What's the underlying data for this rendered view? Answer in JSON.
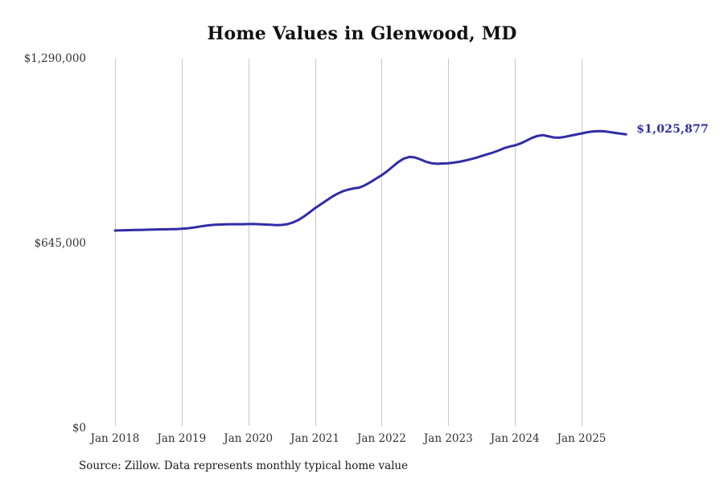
{
  "title": "Home Values in Glenwood, MD",
  "source_note": "Source: Zillow. Data represents monthly typical home value",
  "final_value_label": "$1,025,877",
  "colors": {
    "line": "#312CA6",
    "final_label": "#312CA6",
    "grid": "#c9c9c9",
    "axis_text": "#333333",
    "title_text": "#111111"
  },
  "chart_data": {
    "type": "line",
    "title": "Home Values in Glenwood, MD",
    "xlabel": "",
    "ylabel": "",
    "grid": "vertical-only",
    "legend": "none",
    "ylim": [
      0,
      1290000
    ],
    "y_ticks": [
      {
        "label": "$0",
        "value": 0
      },
      {
        "label": "$645,000",
        "value": 645000
      },
      {
        "label": "$1,290,000",
        "value": 1290000
      }
    ],
    "x_ticks": [
      {
        "label": "Jan 2018",
        "month_index": 0
      },
      {
        "label": "Jan 2019",
        "month_index": 12
      },
      {
        "label": "Jan 2020",
        "month_index": 24
      },
      {
        "label": "Jan 2021",
        "month_index": 36
      },
      {
        "label": "Jan 2022",
        "month_index": 48
      },
      {
        "label": "Jan 2023",
        "month_index": 60
      },
      {
        "label": "Jan 2024",
        "month_index": 72
      },
      {
        "label": "Jan 2025",
        "month_index": 84
      }
    ],
    "start_month": "2018-01",
    "end_month": "2025-09",
    "annotation": {
      "text": "$1,025,877",
      "value": 1025877,
      "position": "end-of-line"
    },
    "series": [
      {
        "name": "Monthly typical home value",
        "values": [
          690000,
          690500,
          691000,
          691500,
          692000,
          692500,
          693000,
          693500,
          694000,
          694200,
          694500,
          695000,
          696000,
          697500,
          700000,
          703000,
          706000,
          708500,
          710000,
          711000,
          711500,
          712000,
          712000,
          712000,
          712500,
          712500,
          712000,
          711000,
          710000,
          709000,
          709500,
          712000,
          718000,
          727000,
          739000,
          753000,
          768000,
          781000,
          794000,
          807000,
          818000,
          827000,
          833000,
          837000,
          840000,
          848000,
          859000,
          871000,
          883000,
          897000,
          913000,
          929000,
          941000,
          947000,
          945000,
          938000,
          930000,
          925000,
          923000,
          924000,
          925000,
          927000,
          930000,
          934000,
          939000,
          944000,
          950000,
          956000,
          962000,
          969000,
          977000,
          983000,
          987000,
          994000,
          1003000,
          1013000,
          1020000,
          1023000,
          1019000,
          1015000,
          1014000,
          1017000,
          1021000,
          1025000,
          1029000,
          1033000,
          1036000,
          1037000,
          1036500,
          1034000,
          1031000,
          1028000,
          1025877
        ]
      }
    ]
  }
}
